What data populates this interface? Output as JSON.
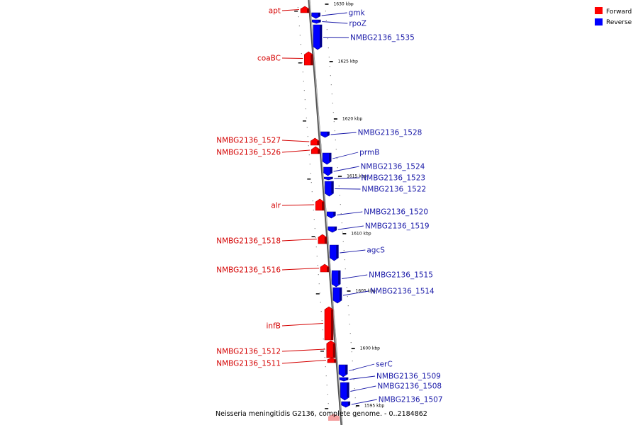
{
  "colors": {
    "forward": "#ff0000",
    "forward_label": "#d40000",
    "reverse": "#0000ff",
    "reverse_label": "#1a1aa8",
    "axis": "#999999",
    "faded_forward": "#f4a0a0"
  },
  "legend": [
    {
      "label": "Forward",
      "color": "#ff0000"
    },
    {
      "label": "Reverse",
      "color": "#0000ff"
    }
  ],
  "caption": "Neisseria meningitidis G2136, complete genome. - 0..2184862",
  "ticks": [
    {
      "label": "1630 kbp"
    },
    {
      "label": "1625 kbp"
    },
    {
      "label": "1620 kbp"
    },
    {
      "label": "1615 kbp"
    },
    {
      "label": "1610 kbp"
    },
    {
      "label": "1605 kbp"
    },
    {
      "label": "1600 kbp"
    },
    {
      "label": "1595 kbp"
    }
  ],
  "forward_genes": [
    {
      "name": "apt"
    },
    {
      "name": "coaBC"
    },
    {
      "name": "NMBG2136_1527"
    },
    {
      "name": "NMBG2136_1526"
    },
    {
      "name": "alr"
    },
    {
      "name": "NMBG2136_1518"
    },
    {
      "name": "NMBG2136_1516"
    },
    {
      "name": "infB"
    },
    {
      "name": "NMBG2136_1512"
    },
    {
      "name": "NMBG2136_1511"
    }
  ],
  "reverse_genes": [
    {
      "name": "gmk"
    },
    {
      "name": "rpoZ"
    },
    {
      "name": "NMBG2136_1535"
    },
    {
      "name": "NMBG2136_1528"
    },
    {
      "name": "prmB"
    },
    {
      "name": "NMBG2136_1524"
    },
    {
      "name": "NMBG2136_1523"
    },
    {
      "name": "NMBG2136_1522"
    },
    {
      "name": "NMBG2136_1520"
    },
    {
      "name": "NMBG2136_1519"
    },
    {
      "name": "agcS"
    },
    {
      "name": "NMBG2136_1515"
    },
    {
      "name": "NMBG2136_1514"
    },
    {
      "name": "serC"
    },
    {
      "name": "NMBG2136_1509"
    },
    {
      "name": "NMBG2136_1508"
    },
    {
      "name": "NMBG2136_1507"
    }
  ]
}
